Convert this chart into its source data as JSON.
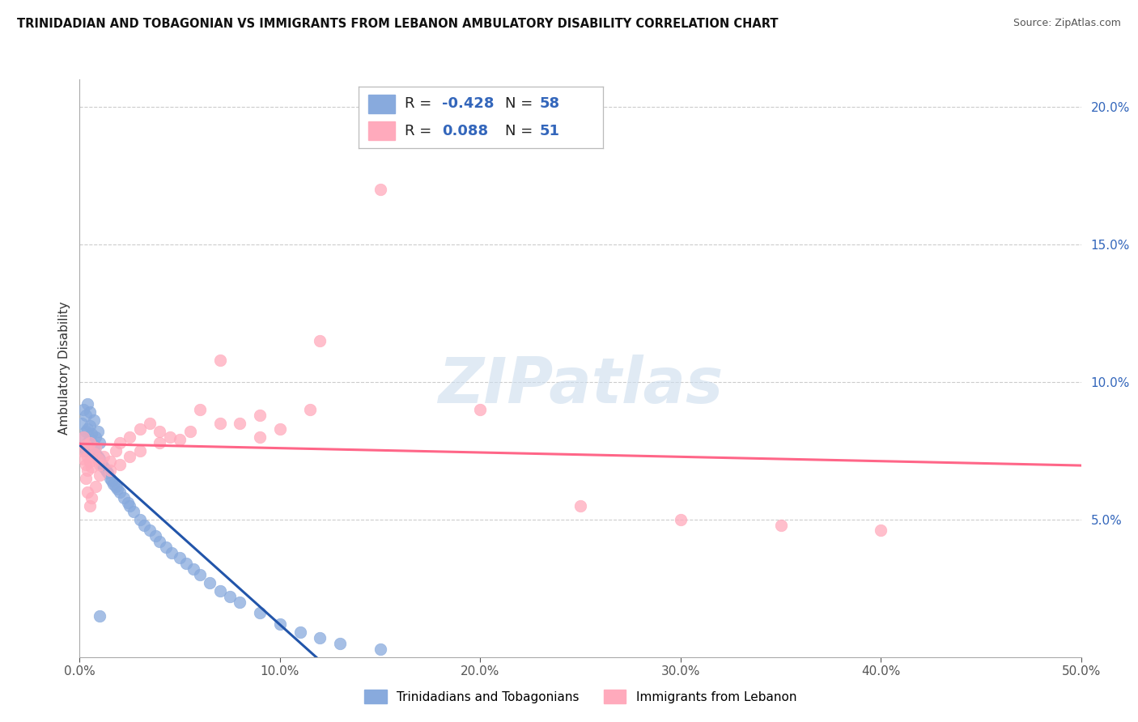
{
  "title": "TRINIDADIAN AND TOBAGONIAN VS IMMIGRANTS FROM LEBANON AMBULATORY DISABILITY CORRELATION CHART",
  "source": "Source: ZipAtlas.com",
  "ylabel": "Ambulatory Disability",
  "legend_label1": "Trinidadians and Tobagonians",
  "legend_label2": "Immigrants from Lebanon",
  "R1": "-0.428",
  "N1": "58",
  "R2": "0.088",
  "N2": "51",
  "blue_color": "#88AADD",
  "pink_color": "#FFAABC",
  "blue_line_color": "#2255AA",
  "pink_line_color": "#FF6688",
  "xmin": 0.0,
  "xmax": 0.5,
  "ymin": 0.0,
  "ymax": 0.21,
  "blue_scatter_x": [
    0.001,
    0.002,
    0.002,
    0.003,
    0.003,
    0.003,
    0.004,
    0.004,
    0.004,
    0.005,
    0.005,
    0.005,
    0.006,
    0.006,
    0.007,
    0.007,
    0.008,
    0.008,
    0.009,
    0.009,
    0.01,
    0.01,
    0.011,
    0.012,
    0.013,
    0.014,
    0.015,
    0.016,
    0.017,
    0.018,
    0.019,
    0.02,
    0.022,
    0.024,
    0.025,
    0.027,
    0.03,
    0.032,
    0.035,
    0.038,
    0.04,
    0.043,
    0.046,
    0.05,
    0.053,
    0.057,
    0.06,
    0.065,
    0.07,
    0.075,
    0.08,
    0.09,
    0.1,
    0.11,
    0.12,
    0.13,
    0.15,
    0.01
  ],
  "blue_scatter_y": [
    0.085,
    0.08,
    0.09,
    0.075,
    0.082,
    0.088,
    0.078,
    0.083,
    0.092,
    0.079,
    0.084,
    0.089,
    0.076,
    0.081,
    0.077,
    0.086,
    0.074,
    0.08,
    0.073,
    0.082,
    0.072,
    0.078,
    0.07,
    0.069,
    0.068,
    0.067,
    0.065,
    0.064,
    0.063,
    0.062,
    0.061,
    0.06,
    0.058,
    0.056,
    0.055,
    0.053,
    0.05,
    0.048,
    0.046,
    0.044,
    0.042,
    0.04,
    0.038,
    0.036,
    0.034,
    0.032,
    0.03,
    0.027,
    0.024,
    0.022,
    0.02,
    0.016,
    0.012,
    0.009,
    0.007,
    0.005,
    0.003,
    0.015
  ],
  "pink_scatter_x": [
    0.001,
    0.002,
    0.002,
    0.003,
    0.003,
    0.004,
    0.004,
    0.005,
    0.005,
    0.006,
    0.007,
    0.008,
    0.009,
    0.01,
    0.012,
    0.015,
    0.018,
    0.02,
    0.025,
    0.03,
    0.035,
    0.04,
    0.05,
    0.06,
    0.07,
    0.08,
    0.09,
    0.1,
    0.12,
    0.15,
    0.2,
    0.25,
    0.3,
    0.35,
    0.4,
    0.003,
    0.004,
    0.005,
    0.006,
    0.008,
    0.01,
    0.015,
    0.02,
    0.03,
    0.04,
    0.055,
    0.07,
    0.09,
    0.115,
    0.045,
    0.025
  ],
  "pink_scatter_y": [
    0.075,
    0.072,
    0.08,
    0.07,
    0.077,
    0.068,
    0.073,
    0.071,
    0.078,
    0.069,
    0.074,
    0.076,
    0.072,
    0.07,
    0.073,
    0.071,
    0.075,
    0.078,
    0.08,
    0.083,
    0.085,
    0.082,
    0.079,
    0.09,
    0.108,
    0.085,
    0.08,
    0.083,
    0.115,
    0.17,
    0.09,
    0.055,
    0.05,
    0.048,
    0.046,
    0.065,
    0.06,
    0.055,
    0.058,
    0.062,
    0.066,
    0.068,
    0.07,
    0.075,
    0.078,
    0.082,
    0.085,
    0.088,
    0.09,
    0.08,
    0.073
  ]
}
